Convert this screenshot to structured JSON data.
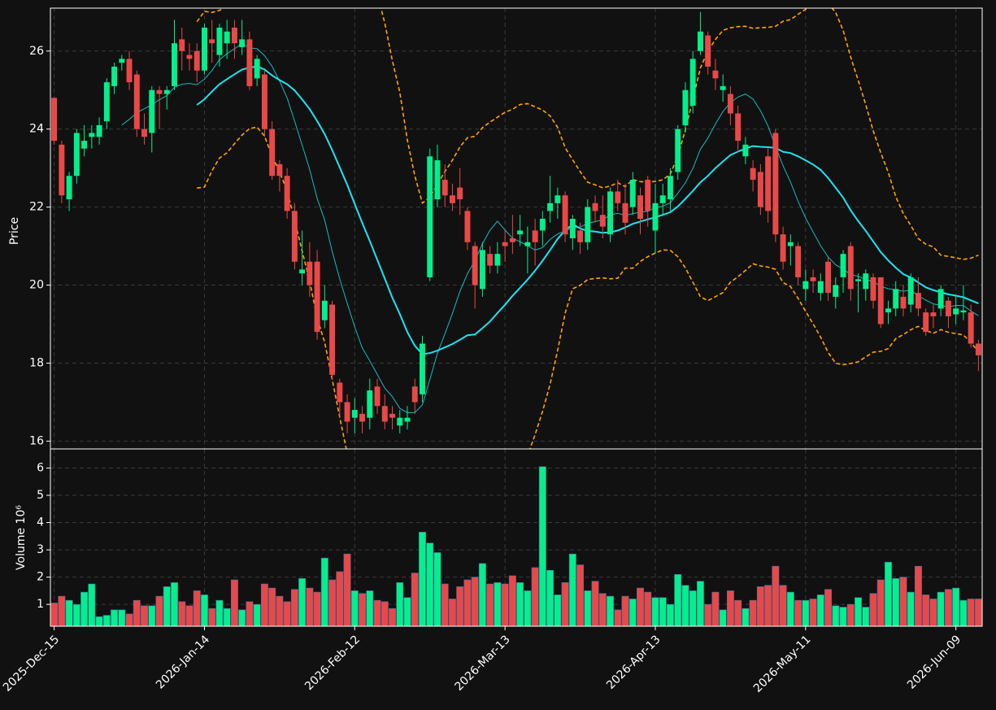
{
  "chart_data": {
    "type": "candlestick",
    "ylabel": "Price",
    "volume_ylabel": "Volume  10⁶",
    "up_color": "#00f08c",
    "down_color": "#ea4848",
    "ma_color": "#19e6f0",
    "band_color": "#ffa500",
    "grid": true,
    "xlim": [
      -0.5,
      123.5
    ],
    "xticks": [
      {
        "value": 0,
        "label": "2025-Dec-15"
      },
      {
        "value": 20,
        "label": "2026-Jan-14"
      },
      {
        "value": 40,
        "label": "2026-Feb-12"
      },
      {
        "value": 60,
        "label": "2026-Mar-13"
      },
      {
        "value": 80,
        "label": "2026-Apr-13"
      },
      {
        "value": 100,
        "label": "2026-May-11"
      },
      {
        "value": 120,
        "label": "2026-Jun-09"
      }
    ],
    "ylim": [
      15.8,
      27.1
    ],
    "yticks": [
      16,
      18,
      20,
      22,
      24,
      26
    ],
    "volume_ylim": [
      0.2,
      6.7
    ],
    "volume_yticks": [
      1,
      2,
      3,
      4,
      5,
      6
    ],
    "open": [
      24.8,
      23.6,
      22.2,
      22.8,
      23.5,
      23.8,
      23.8,
      24.2,
      25.1,
      25.7,
      25.8,
      25.4,
      24.0,
      23.9,
      25.0,
      24.9,
      25.1,
      26.3,
      25.9,
      26.0,
      25.5,
      26.3,
      25.9,
      26.2,
      26.6,
      26.1,
      26.3,
      25.3,
      25.4,
      24.0,
      23.1,
      22.8,
      21.9,
      20.3,
      20.6,
      20.6,
      19.1,
      19.5,
      17.5,
      17.0,
      16.6,
      16.7,
      16.6,
      17.4,
      16.9,
      16.7,
      16.4,
      16.5,
      17.4,
      17.2,
      20.2,
      22.2,
      22.7,
      22.3,
      22.5,
      21.9,
      21.0,
      19.9,
      20.8,
      20.5,
      21.1,
      21.2,
      21.3,
      21.0,
      21.4,
      21.4,
      21.9,
      22.1,
      22.3,
      21.2,
      21.4,
      21.1,
      22.1,
      21.8,
      21.3,
      22.4,
      22.1,
      22.0,
      22.3,
      22.7,
      21.4,
      22.1,
      22.2,
      22.9,
      24.1,
      24.6,
      26.0,
      26.4,
      25.5,
      25.0,
      24.9,
      24.4,
      23.3,
      23.0,
      22.9,
      23.3,
      23.9,
      21.3,
      21.0,
      21.0,
      19.9,
      20.2,
      19.8,
      20.6,
      19.7,
      20.2,
      21.0,
      20.1,
      19.9,
      20.2,
      20.2,
      19.3,
      19.4,
      19.7,
      19.5,
      19.8,
      19.3,
      19.3,
      19.4,
      19.6,
      19.25,
      19.3,
      19.3,
      18.5
    ],
    "high": [
      24.8,
      23.7,
      22.9,
      24.0,
      24.1,
      24.1,
      24.3,
      25.3,
      25.7,
      25.9,
      26.0,
      25.5,
      24.4,
      25.1,
      25.1,
      25.1,
      26.8,
      26.6,
      26.2,
      26.2,
      26.7,
      26.8,
      26.7,
      26.8,
      26.8,
      26.8,
      26.5,
      25.9,
      25.5,
      24.2,
      23.2,
      23.0,
      22.1,
      21.4,
      21.1,
      20.9,
      20.0,
      19.6,
      17.6,
      17.2,
      17.1,
      16.9,
      17.6,
      17.6,
      17.2,
      16.9,
      16.8,
      16.9,
      17.6,
      18.7,
      23.5,
      23.6,
      23.1,
      22.6,
      23.0,
      22.0,
      21.1,
      21.1,
      21.0,
      21.1,
      21.4,
      21.8,
      21.8,
      21.5,
      21.7,
      21.9,
      22.8,
      22.5,
      22.4,
      21.8,
      21.6,
      22.2,
      22.3,
      22.3,
      22.5,
      22.7,
      22.6,
      22.9,
      22.5,
      22.8,
      22.6,
      22.6,
      23.0,
      24.1,
      25.2,
      26.0,
      27.0,
      26.5,
      25.8,
      25.4,
      25.1,
      24.6,
      23.8,
      23.2,
      23.1,
      23.5,
      24.0,
      21.5,
      21.3,
      21.1,
      20.4,
      20.4,
      20.3,
      20.7,
      20.2,
      20.9,
      21.1,
      20.3,
      20.4,
      20.3,
      20.2,
      19.6,
      20.1,
      20.0,
      20.3,
      20.2,
      19.4,
      19.5,
      20.0,
      19.7,
      19.7,
      20.0,
      19.5,
      18.6
    ],
    "low": [
      23.6,
      22.1,
      21.9,
      22.6,
      23.3,
      23.5,
      23.6,
      24.0,
      24.9,
      25.5,
      25.0,
      23.8,
      23.6,
      23.4,
      24.0,
      24.5,
      25.0,
      25.5,
      25.5,
      25.2,
      25.4,
      25.7,
      25.6,
      25.8,
      25.8,
      25.9,
      25.0,
      25.1,
      23.8,
      22.7,
      22.4,
      21.7,
      20.4,
      20.0,
      19.7,
      18.6,
      18.9,
      17.6,
      16.6,
      16.2,
      16.2,
      16.2,
      16.3,
      16.7,
      16.3,
      16.3,
      16.2,
      16.3,
      16.7,
      17.0,
      20.1,
      22.0,
      22.0,
      21.9,
      21.8,
      20.9,
      19.4,
      19.7,
      20.3,
      20.3,
      20.6,
      20.8,
      21.0,
      20.3,
      20.5,
      21.0,
      21.6,
      21.7,
      21.1,
      20.9,
      20.8,
      20.9,
      21.6,
      21.2,
      21.1,
      21.9,
      21.3,
      21.8,
      21.3,
      21.5,
      20.8,
      21.8,
      21.9,
      22.7,
      23.9,
      24.4,
      25.9,
      25.4,
      25.0,
      24.7,
      24.1,
      23.4,
      23.1,
      22.4,
      21.8,
      21.6,
      21.1,
      20.4,
      20.5,
      20.0,
      19.6,
      19.8,
      19.6,
      19.6,
      19.4,
      19.8,
      19.6,
      19.3,
      19.6,
      19.4,
      18.9,
      19.0,
      19.2,
      19.2,
      19.3,
      19.2,
      18.7,
      18.9,
      19.2,
      18.9,
      19.0,
      19.1,
      18.4,
      17.8
    ],
    "close": [
      23.7,
      22.3,
      22.8,
      23.9,
      23.7,
      23.9,
      24.1,
      25.2,
      25.6,
      25.8,
      25.2,
      24.0,
      23.8,
      25.0,
      24.9,
      25.0,
      26.2,
      26.0,
      25.8,
      25.5,
      26.6,
      26.2,
      26.6,
      26.5,
      26.2,
      26.3,
      25.1,
      25.8,
      24.0,
      22.8,
      22.8,
      21.9,
      20.6,
      20.4,
      20.0,
      18.8,
      19.6,
      17.7,
      17.0,
      16.5,
      16.8,
      16.5,
      17.3,
      16.9,
      16.5,
      16.6,
      16.6,
      16.6,
      17.0,
      18.5,
      23.3,
      23.2,
      22.3,
      22.1,
      22.2,
      21.1,
      20.0,
      20.9,
      20.5,
      20.8,
      21.0,
      21.1,
      21.4,
      21.1,
      21.1,
      21.7,
      22.1,
      22.3,
      21.3,
      21.7,
      21.1,
      22.0,
      21.9,
      21.5,
      22.4,
      22.1,
      21.6,
      22.7,
      21.7,
      21.9,
      22.1,
      22.3,
      22.8,
      24.0,
      25.0,
      25.8,
      26.5,
      25.6,
      25.3,
      25.1,
      24.4,
      23.7,
      23.6,
      22.7,
      22.0,
      21.9,
      21.3,
      20.6,
      21.1,
      20.2,
      20.1,
      20.1,
      20.1,
      19.8,
      20.0,
      20.8,
      19.9,
      20.15,
      20.3,
      19.6,
      19.0,
      19.4,
      19.9,
      19.4,
      20.2,
      19.4,
      18.8,
      19.2,
      19.9,
      19.2,
      19.4,
      19.35,
      18.5,
      18.2
    ],
    "volume": [
      1.05,
      1.3,
      1.15,
      1.0,
      1.45,
      1.75,
      0.55,
      0.6,
      0.8,
      0.8,
      0.65,
      1.15,
      0.95,
      0.95,
      1.3,
      1.65,
      1.8,
      1.1,
      0.95,
      1.5,
      1.35,
      0.85,
      1.15,
      0.85,
      1.9,
      0.8,
      1.1,
      1.0,
      1.75,
      1.6,
      1.3,
      1.1,
      1.55,
      1.95,
      1.6,
      1.45,
      2.7,
      1.9,
      2.2,
      2.85,
      1.5,
      1.4,
      1.5,
      1.15,
      1.1,
      0.85,
      1.8,
      1.25,
      2.15,
      3.65,
      3.25,
      2.9,
      1.75,
      1.2,
      1.65,
      1.9,
      2.0,
      2.5,
      1.75,
      1.8,
      1.75,
      2.05,
      1.8,
      1.5,
      2.35,
      6.05,
      2.25,
      1.35,
      1.8,
      2.85,
      2.45,
      1.5,
      1.85,
      1.4,
      1.3,
      0.8,
      1.3,
      1.2,
      1.6,
      1.45,
      1.25,
      1.25,
      1.0,
      2.1,
      1.7,
      1.5,
      1.85,
      1.0,
      1.45,
      0.8,
      1.5,
      1.15,
      0.85,
      1.15,
      1.65,
      1.7,
      2.4,
      1.7,
      1.45,
      1.15,
      1.15,
      1.2,
      1.35,
      1.55,
      0.95,
      0.9,
      1.0,
      1.25,
      0.9,
      1.4,
      1.9,
      2.55,
      1.95,
      2.0,
      1.45,
      2.4,
      1.35,
      1.2,
      1.45,
      1.55,
      1.6,
      1.15,
      1.2,
      1.2
    ]
  }
}
